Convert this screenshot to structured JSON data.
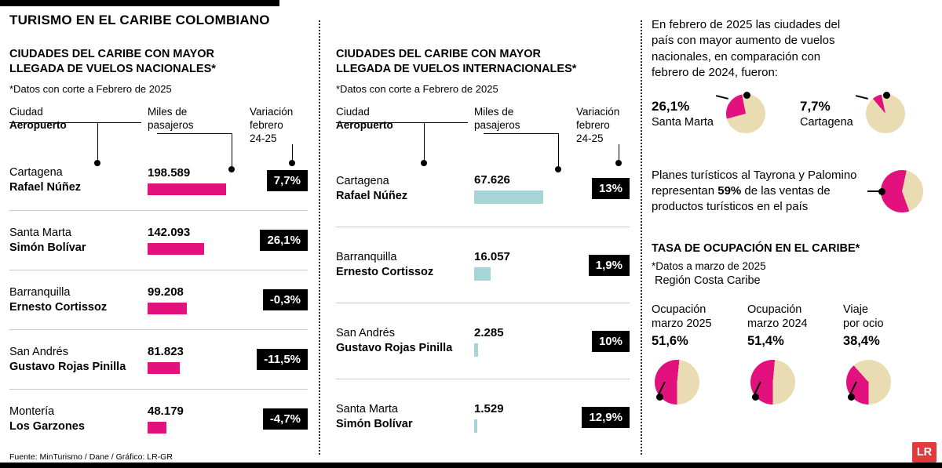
{
  "title": "TURISMO EN EL CARIBE COLOMBIANO",
  "colors": {
    "pink": "#e2117d",
    "blue": "#a6d5d8",
    "beige": "#e9dcb2",
    "badge_bg": "#000000",
    "logo_red": "#e23b3f"
  },
  "national": {
    "heading": "CIUDADES DEL CARIBE CON MAYOR\nLLEGADA DE VUELOS NACIONALES*",
    "note": "*Datos con corte a Febrero de 2025",
    "col_city": "Ciudad",
    "col_airport": "Aeropuerto",
    "col_passengers": "Miles de\npasajeros",
    "col_variation": "Variación\nfebrero\n24-25",
    "rows": [
      {
        "city": "Cartagena",
        "airport": "Rafael Núñez",
        "passengers": "198.589",
        "variation": "7,7%",
        "bar_pct": 100
      },
      {
        "city": "Santa Marta",
        "airport": "Simón Bolívar",
        "passengers": "142.093",
        "variation": "26,1%",
        "bar_pct": 71.5
      },
      {
        "city": "Barranquilla",
        "airport": "Ernesto Cortissoz",
        "passengers": "99.208",
        "variation": "-0,3%",
        "bar_pct": 50
      },
      {
        "city": "San Andrés",
        "airport": "Gustavo Rojas Pinilla",
        "passengers": "81.823",
        "variation": "-11,5%",
        "bar_pct": 41.2
      },
      {
        "city": "Montería",
        "airport": "Los Garzones",
        "passengers": "48.179",
        "variation": "-4,7%",
        "bar_pct": 24.3
      }
    ]
  },
  "international": {
    "heading": "CIUDADES DEL CARIBE CON MAYOR\nLLEGADA DE VUELOS INTERNACIONALES*",
    "note": "*Datos con corte a Febrero de 2025",
    "col_city": "Ciudad",
    "col_airport": "Aeropuerto",
    "col_passengers": "Miles de\npasajeros",
    "col_variation": "Variación\nfebrero\n24-25",
    "rows": [
      {
        "city": "Cartagena",
        "airport": "Rafael Núñez",
        "passengers": "67.626",
        "variation": "13%",
        "bar_pct": 100
      },
      {
        "city": "Barranquilla",
        "airport": "Ernesto Cortissoz",
        "passengers": "16.057",
        "variation": "1,9%",
        "bar_pct": 23.7
      },
      {
        "city": "San Andrés",
        "airport": "Gustavo Rojas Pinilla",
        "passengers": "2.285",
        "variation": "10%",
        "bar_pct": 5.5
      },
      {
        "city": "Santa Marta",
        "airport": "Simón Bolívar",
        "passengers": "1.529",
        "variation": "12,9%",
        "bar_pct": 4.5
      }
    ]
  },
  "right": {
    "intro": "En febrero de 2025 las ciudades del\npaís con mayor aumento de vuelos\nnacionales, en comparación con\nfebrero de 2024, fueron:",
    "pies_top": [
      {
        "value": "26,1%",
        "label": "Santa Marta",
        "pct": 26.1
      },
      {
        "value": "7,7%",
        "label": "Cartagena",
        "pct": 7.7
      }
    ],
    "tayrona": {
      "pre": "Planes turísticos al Tayrona y Palomino representan ",
      "bold": "59%",
      "post": " de las ventas de productos turísticos en el país",
      "pct": 59
    },
    "occupancy_heading": "TASA DE OCUPACIÓN EN EL CARIBE*",
    "occupancy_note": "*Datos a marzo de 2025",
    "occupancy_region": "Región Costa Caribe",
    "occupancy_pies": [
      {
        "label1": "Ocupación",
        "label2": "marzo 2025",
        "value": "51,6%",
        "pct": 51.6
      },
      {
        "label1": "Ocupación",
        "label2": "marzo 2024",
        "value": "51,4%",
        "pct": 51.4
      },
      {
        "label1": "Viaje",
        "label2": "por ocio",
        "value": "38,4%",
        "pct": 38.4
      }
    ]
  },
  "footer": {
    "source": "Fuente: MinTurismo / Dane / Gráfico: LR-GR",
    "logo": "LR"
  },
  "chart_data": [
    {
      "type": "bar",
      "title": "Ciudades del Caribe con mayor llegada de vuelos nacionales (miles de pasajeros, corte febrero 2025)",
      "categories": [
        "Cartagena – Rafael Núñez",
        "Santa Marta – Simón Bolívar",
        "Barranquilla – Ernesto Cortissoz",
        "San Andrés – Gustavo Rojas Pinilla",
        "Montería – Los Garzones"
      ],
      "values": [
        198589,
        142093,
        99208,
        81823,
        48179
      ],
      "variation_febrero_24_25_pct": [
        7.7,
        26.1,
        -0.3,
        -11.5,
        -4.7
      ],
      "xlabel": "",
      "ylabel": "Miles de pasajeros"
    },
    {
      "type": "bar",
      "title": "Ciudades del Caribe con mayor llegada de vuelos internacionales (corte febrero 2025)",
      "categories": [
        "Cartagena – Rafael Núñez",
        "Barranquilla – Ernesto Cortissoz",
        "San Andrés – Gustavo Rojas Pinilla",
        "Santa Marta – Simón Bolívar"
      ],
      "values": [
        67626,
        16057,
        2285,
        1529
      ],
      "variation_febrero_24_25_pct": [
        13,
        1.9,
        10,
        12.9
      ],
      "xlabel": "",
      "ylabel": "Miles de pasajeros"
    },
    {
      "type": "pie",
      "title": "Ciudades con mayor aumento de vuelos nacionales (feb 2025 vs feb 2024)",
      "categories": [
        "Santa Marta",
        "Cartagena"
      ],
      "values": [
        26.1,
        7.7
      ]
    },
    {
      "type": "pie",
      "title": "Planes turísticos al Tayrona y Palomino sobre ventas de productos turísticos del país",
      "categories": [
        "Tayrona y Palomino"
      ],
      "values": [
        59
      ]
    },
    {
      "type": "pie",
      "title": "Tasa de ocupación en el Caribe – Región Costa Caribe (marzo 2025)",
      "categories": [
        "Ocupación marzo 2025",
        "Ocupación marzo 2024",
        "Viaje por ocio"
      ],
      "values": [
        51.6,
        51.4,
        38.4
      ]
    }
  ]
}
